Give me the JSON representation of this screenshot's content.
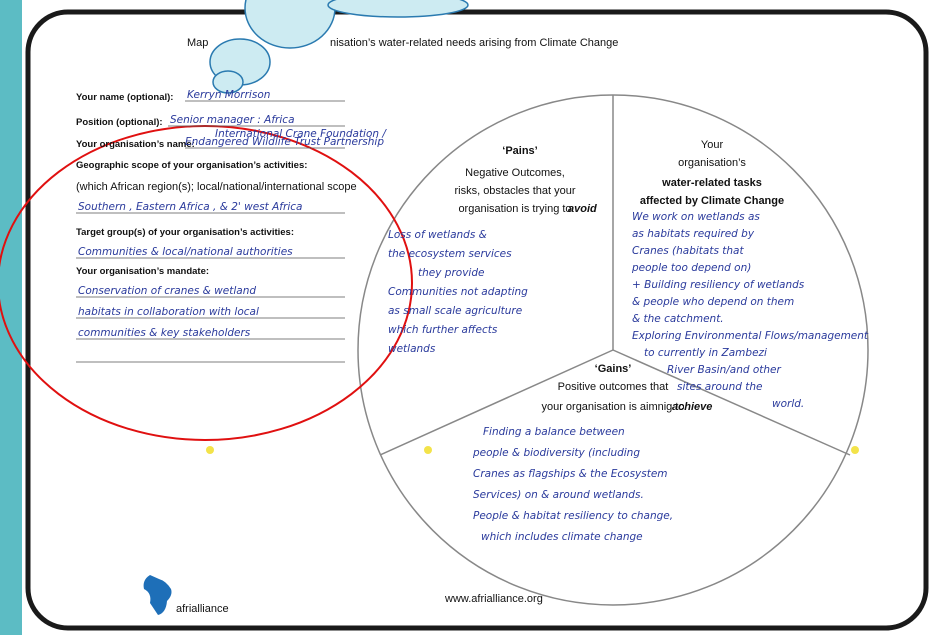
{
  "header": {
    "title_left": "Map",
    "title_right": "nisation’s water-related needs arising from Climate Change"
  },
  "form": {
    "fields": [
      {
        "label": "Your name (optional):",
        "answer": [
          "Kerryn Morrison"
        ]
      },
      {
        "label": "Position (optional):",
        "answer": [
          "Senior manager : Africa"
        ]
      },
      {
        "label": "Your organisation’s name:",
        "answer": [
          "International Crane Foundation /",
          "Endangered Wildlife Trust Partnership"
        ]
      },
      {
        "label": "Geographic scope of your organisation’s activities:",
        "note": "(which African region(s); local/national/international scope",
        "answer": [
          "Southern , Eastern Africa , & 2' west Africa"
        ]
      },
      {
        "label": "Target group(s) of your organisation’s activities:",
        "answer": [
          "Communities & local/national authorities"
        ]
      },
      {
        "label": "Your organisation’s mandate:",
        "answer": [
          "Conservation of cranes & wetland",
          "habitats in collaboration with local",
          "communities & key stakeholders"
        ]
      }
    ]
  },
  "pains": {
    "heading": "‘Pains’",
    "description": [
      "Negative Outcomes,",
      "risks, obstacles that your",
      "organisation is trying to"
    ],
    "emphasis": "avoid",
    "handwriting": [
      "Loss of wetlands &",
      "the ecosystem services",
      "they provide",
      "Communities not adapting",
      "as small scale agriculture",
      "which further affects",
      "wetlands"
    ]
  },
  "tasks": {
    "heading": [
      "Your",
      "organisation’s"
    ],
    "bold": [
      "water-related tasks",
      "affected by Climate Change"
    ],
    "handwriting": [
      "We work on wetlands as",
      "as habitats required by",
      "Cranes (habitats that",
      "people too depend on)",
      "+ Building resiliency of wetlands",
      "& people who depend on them",
      "& the catchment.",
      "Exploring Environmental Flows/management",
      "to currently in Zambezi",
      "River Basin/and other",
      "sites around the",
      "world."
    ]
  },
  "gains": {
    "heading": "‘Gains’",
    "description": [
      "Positive outcomes that",
      "your organisation is aimnig to"
    ],
    "emphasis": "achieve",
    "handwriting": [
      "Finding a balance between",
      "people & biodiversity (including",
      "Cranes as flagships & the Ecosystem",
      "Services) on & around wetlands.",
      "People & habitat resiliency to change,",
      "which includes climate change"
    ]
  },
  "footer": {
    "url": "www.afrialliance.org",
    "logo": "afrialliance"
  }
}
